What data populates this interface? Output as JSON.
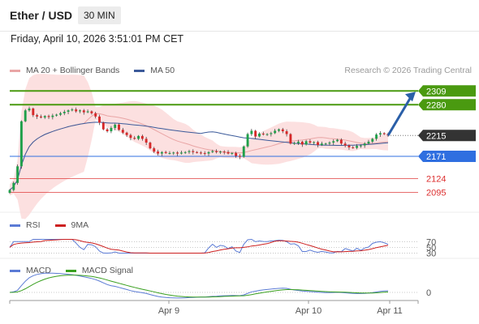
{
  "header": {
    "pair_title": "Ether / USD",
    "timeframe_button": "30 MIN"
  },
  "date_line": "Friday, April 10, 2026 3:51:01 PM CET",
  "credit": "Research © 2026 Trading Central",
  "main_legend": [
    {
      "label": "MA 20 + Bollinger Bands",
      "color": "#e9a5a5"
    },
    {
      "label": "MA 50",
      "color": "#3b5a9a"
    }
  ],
  "rsi_legend": [
    {
      "label": "RSI",
      "color": "#5b7bd5"
    },
    {
      "label": "9MA",
      "color": "#cc1f1f"
    }
  ],
  "macd_legend": [
    {
      "label": "MACD",
      "color": "#5b7bd5"
    },
    {
      "label": "MACD Signal",
      "color": "#3aa020"
    }
  ],
  "colors": {
    "green_level": "#4a9a10",
    "blue_level": "#2f6fe0",
    "red_level": "#dd3030",
    "current": "#333333",
    "arrow": "#2a5fa8"
  },
  "chart_data": [
    {
      "type": "candlestick",
      "x_ticks": [
        "Apr 9",
        "Apr 10",
        "Apr 11"
      ],
      "y_levels": [
        {
          "value": 2309,
          "kind": "resistance"
        },
        {
          "value": 2280,
          "kind": "resistance"
        },
        {
          "value": 2215,
          "kind": "current"
        },
        {
          "value": 2171,
          "kind": "pivot"
        },
        {
          "value": 2124,
          "kind": "support"
        },
        {
          "value": 2095,
          "kind": "support"
        }
      ],
      "ylim": [
        2060,
        2330
      ],
      "close_series": [
        2100,
        2115,
        2150,
        2245,
        2268,
        2272,
        2258,
        2255,
        2253,
        2256,
        2254,
        2257,
        2259,
        2262,
        2265,
        2268,
        2270,
        2266,
        2268,
        2264,
        2266,
        2262,
        2255,
        2242,
        2228,
        2224,
        2231,
        2238,
        2227,
        2221,
        2216,
        2210,
        2208,
        2214,
        2208,
        2200,
        2188,
        2181,
        2177,
        2180,
        2178,
        2178,
        2179,
        2177,
        2179,
        2180,
        2182,
        2180,
        2179,
        2178,
        2177,
        2180,
        2182,
        2180,
        2181,
        2180,
        2177,
        2178,
        2172,
        2170,
        2192,
        2218,
        2225,
        2213,
        2219,
        2218,
        2218,
        2220,
        2225,
        2228,
        2224,
        2218,
        2198,
        2199,
        2202,
        2196,
        2203,
        2200,
        2201,
        2195,
        2198,
        2198,
        2200,
        2203,
        2206,
        2198,
        2194,
        2190,
        2189,
        2193,
        2194,
        2198,
        2202,
        2208,
        2217,
        2220,
        2218,
        2215
      ],
      "annotation": "projected upward path toward 2309"
    },
    {
      "type": "line",
      "name": "RSI",
      "y_ticks": [
        70,
        50,
        30
      ],
      "ylim": [
        20,
        85
      ]
    },
    {
      "type": "line",
      "name": "MACD",
      "y_ticks": [
        0
      ]
    }
  ]
}
